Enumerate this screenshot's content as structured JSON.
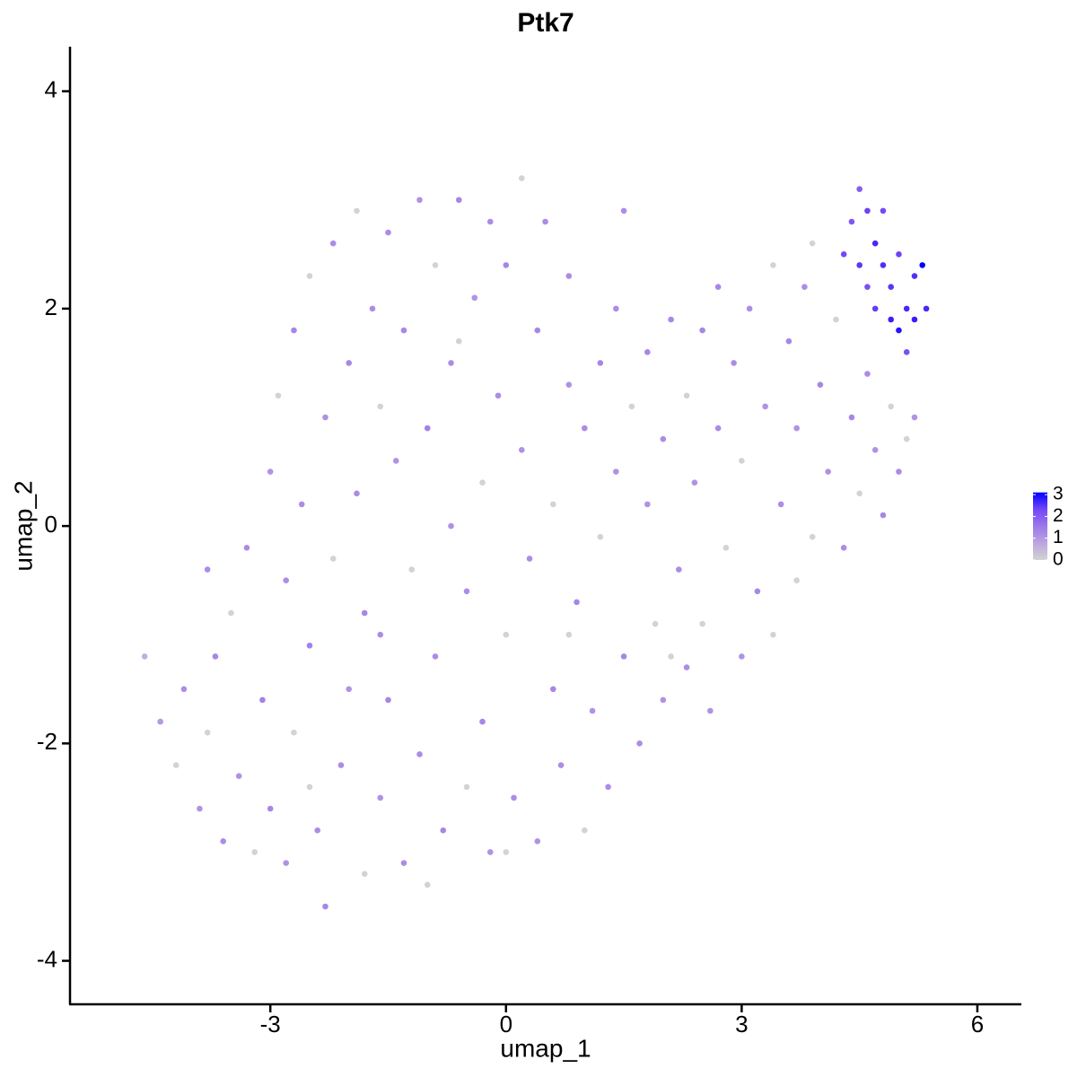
{
  "chart_data": {
    "type": "scatter",
    "title": "Ptk7",
    "x_label": "umap_1",
    "y_label": "umap_2",
    "xlim": [
      -5.55,
      6.56
    ],
    "ylim": [
      -4.4,
      4.41
    ],
    "xticks": [
      -3,
      0,
      3,
      6
    ],
    "yticks": [
      -4,
      -2,
      0,
      2,
      4
    ],
    "colorbar": {
      "lim": [
        0,
        3.1
      ],
      "ticks": [
        0,
        1,
        2,
        3
      ],
      "low": "#d3d3d3",
      "high": "#0000ff"
    },
    "x": [
      -4.6,
      -4.4,
      -4.2,
      -4.1,
      -3.9,
      -3.8,
      -3.7,
      -3.6,
      -3.5,
      -3.4,
      -3.3,
      -3.2,
      -3.1,
      -3.0,
      -3.0,
      -2.9,
      -2.8,
      -2.8,
      -2.7,
      -2.7,
      -2.6,
      -2.5,
      -2.5,
      -2.4,
      -2.3,
      -2.3,
      -2.2,
      -2.2,
      -2.1,
      -2.0,
      -2.0,
      -1.9,
      -1.9,
      -1.8,
      -1.8,
      -1.7,
      -1.6,
      -1.6,
      -1.5,
      -1.5,
      -1.4,
      -1.3,
      -1.3,
      -1.2,
      -1.1,
      -1.1,
      -1.0,
      -0.9,
      -0.9,
      -0.8,
      -0.7,
      -0.7,
      -0.6,
      -0.5,
      -0.5,
      -0.4,
      -0.3,
      -0.3,
      -0.2,
      -0.2,
      -0.1,
      0.0,
      0.0,
      0.1,
      0.2,
      0.2,
      0.3,
      0.4,
      0.4,
      0.5,
      0.6,
      0.6,
      0.7,
      0.8,
      0.8,
      0.9,
      1.0,
      1.0,
      1.1,
      1.2,
      1.2,
      1.3,
      1.4,
      1.5,
      1.5,
      1.6,
      1.7,
      1.8,
      1.8,
      1.9,
      2.0,
      2.0,
      2.1,
      2.2,
      2.3,
      2.3,
      2.4,
      2.5,
      2.5,
      2.6,
      2.7,
      2.7,
      2.8,
      2.9,
      3.0,
      3.0,
      3.1,
      3.2,
      3.3,
      3.4,
      3.4,
      3.5,
      3.6,
      3.7,
      3.7,
      3.8,
      3.9,
      4.0,
      4.1,
      4.2,
      4.3,
      4.4,
      4.5,
      4.6,
      4.7,
      4.8,
      4.9,
      5.0,
      5.1,
      5.2,
      4.3,
      4.4,
      4.5,
      4.5,
      4.6,
      4.6,
      4.7,
      4.7,
      4.8,
      4.8,
      4.9,
      4.9,
      5.0,
      5.0,
      5.1,
      5.1,
      5.2,
      5.2,
      5.3,
      5.35,
      -1.0,
      0.0,
      -3.8,
      -2.5,
      1.4,
      -0.6,
      0.8,
      -1.6,
      2.1,
      3.9
    ],
    "y": [
      -1.2,
      -1.8,
      -2.2,
      -1.5,
      -2.6,
      -1.9,
      -1.2,
      -2.9,
      -0.8,
      -2.3,
      -0.2,
      -3.0,
      -1.6,
      0.5,
      -2.6,
      1.2,
      -0.5,
      -3.1,
      1.8,
      -1.9,
      0.2,
      2.3,
      -1.1,
      -2.8,
      1.0,
      -3.5,
      2.6,
      -0.3,
      -2.2,
      1.5,
      -1.5,
      2.9,
      0.3,
      -3.2,
      -0.8,
      2.0,
      -2.5,
      1.1,
      2.7,
      -1.6,
      0.6,
      -3.1,
      1.8,
      -0.4,
      3.0,
      -2.1,
      0.9,
      2.4,
      -1.2,
      -2.8,
      1.5,
      0.0,
      3.0,
      -2.4,
      -0.6,
      2.1,
      0.4,
      -1.8,
      2.8,
      -3.0,
      1.2,
      -1.0,
      2.4,
      -2.5,
      0.7,
      3.2,
      -0.3,
      1.8,
      -2.9,
      2.8,
      -1.5,
      0.2,
      -2.2,
      1.3,
      2.3,
      -0.7,
      -2.8,
      0.9,
      -1.7,
      1.5,
      -0.1,
      -2.4,
      0.5,
      2.9,
      -1.2,
      1.1,
      -2.0,
      0.2,
      1.6,
      -0.9,
      0.8,
      -1.6,
      1.9,
      -0.4,
      1.2,
      -1.3,
      0.4,
      1.8,
      -0.9,
      -1.7,
      0.9,
      2.2,
      -0.2,
      1.5,
      -1.2,
      0.6,
      2.0,
      -0.6,
      1.1,
      -1.0,
      2.4,
      0.2,
      1.7,
      -0.5,
      0.9,
      2.2,
      -0.1,
      1.3,
      0.5,
      1.9,
      -0.2,
      1.0,
      0.3,
      1.4,
      0.7,
      0.1,
      1.1,
      0.5,
      0.8,
      1.0,
      2.5,
      2.8,
      3.1,
      2.4,
      2.9,
      2.2,
      2.6,
      2.0,
      2.4,
      2.9,
      1.9,
      2.2,
      1.8,
      2.5,
      2.0,
      1.6,
      2.3,
      1.9,
      2.4,
      2.0,
      -3.3,
      -3.0,
      -0.4,
      -2.4,
      2.0,
      1.7,
      -1.0,
      -1.0,
      -1.2,
      2.6
    ],
    "expression": [
      0.6,
      1.0,
      0,
      1.2,
      1.1,
      0,
      1.3,
      1.2,
      0,
      1.1,
      1.2,
      0,
      1.4,
      1.1,
      1.3,
      0,
      1.2,
      1.1,
      1.3,
      0,
      1.2,
      0,
      1.4,
      1.2,
      1.1,
      1.3,
      1.2,
      0,
      1.2,
      1.3,
      1.1,
      0,
      1.2,
      0,
      1.3,
      1.2,
      1.1,
      0,
      1.2,
      1.3,
      1.1,
      1.2,
      1.3,
      0,
      1.1,
      1.2,
      1.4,
      0,
      1.2,
      1.3,
      1.2,
      1.1,
      1.3,
      0,
      1.2,
      1.1,
      0,
      1.3,
      1.2,
      1.1,
      1.2,
      0,
      1.3,
      1.2,
      1.1,
      0,
      1.2,
      1.3,
      1.1,
      1.2,
      1.3,
      0,
      1.2,
      1.1,
      1.2,
      1.3,
      0,
      1.2,
      1.1,
      1.3,
      0,
      1.2,
      1.1,
      1.2,
      1.3,
      0,
      1.2,
      1.1,
      1.3,
      0,
      1.2,
      1.1,
      1.3,
      1.2,
      0,
      1.2,
      1.1,
      1.3,
      0,
      1.1,
      1.2,
      1.3,
      0,
      1.2,
      1.1,
      0,
      1.2,
      1.3,
      1.1,
      0,
      0,
      1.2,
      1.3,
      0,
      1.1,
      1.2,
      0,
      1.3,
      1.1,
      0,
      1.2,
      1.3,
      0,
      1.2,
      1.1,
      1.3,
      0,
      1.2,
      0,
      1.1,
      2.3,
      2.1,
      2.0,
      2.6,
      2.4,
      2.2,
      2.8,
      2.5,
      2.7,
      2.3,
      2.9,
      2.6,
      3.0,
      2.4,
      2.8,
      2.2,
      2.7,
      2.9,
      3.1,
      2.8,
      0,
      0,
      1.2,
      0,
      1.2,
      0,
      0,
      1.2,
      0,
      0
    ]
  }
}
